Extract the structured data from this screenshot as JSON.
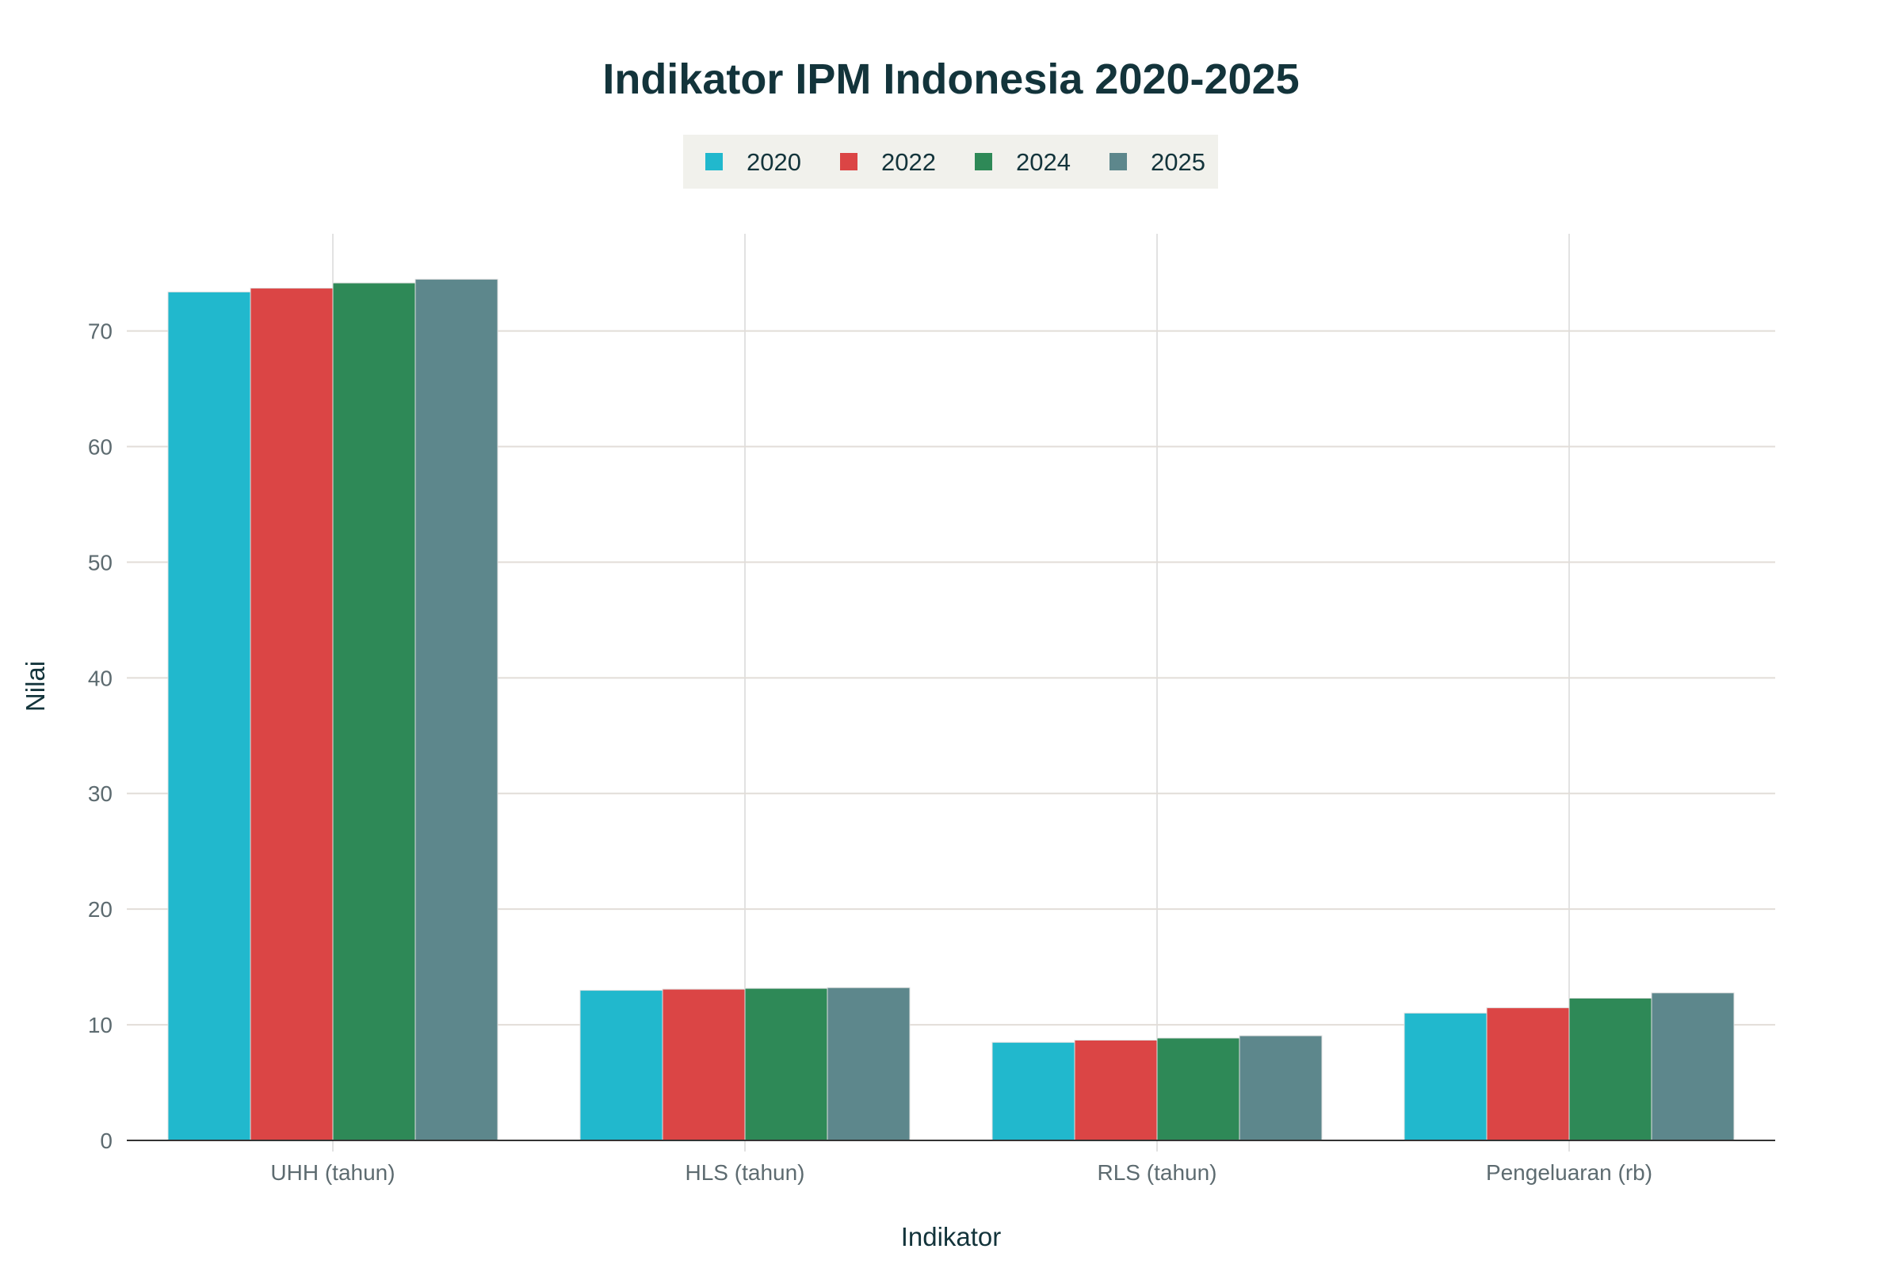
{
  "chart_data": {
    "type": "bar",
    "title": "Indikator IPM Indonesia 2020-2025",
    "xlabel": "Indikator",
    "ylabel": "Nilai",
    "categories": [
      "UHH (tahun)",
      "HLS (tahun)",
      "RLS (tahun)",
      "Pengeluaran (rb)"
    ],
    "series": [
      {
        "name": "2020",
        "color": "#21b8cd",
        "values": [
          73.37,
          12.98,
          8.48,
          11.01
        ]
      },
      {
        "name": "2022",
        "color": "#db4545",
        "values": [
          73.7,
          13.08,
          8.67,
          11.47
        ]
      },
      {
        "name": "2024",
        "color": "#2e8957",
        "values": [
          74.15,
          13.15,
          8.85,
          12.3
        ]
      },
      {
        "name": "2025",
        "color": "#5d878c",
        "values": [
          74.47,
          13.21,
          9.05,
          12.76
        ]
      }
    ],
    "ylim": [
      0,
      78.4
    ],
    "yticks": [
      0,
      10,
      20,
      30,
      40,
      50,
      60,
      70
    ],
    "grid": true,
    "legend_position": "top-center",
    "legend_background": "#f1f1ec"
  }
}
